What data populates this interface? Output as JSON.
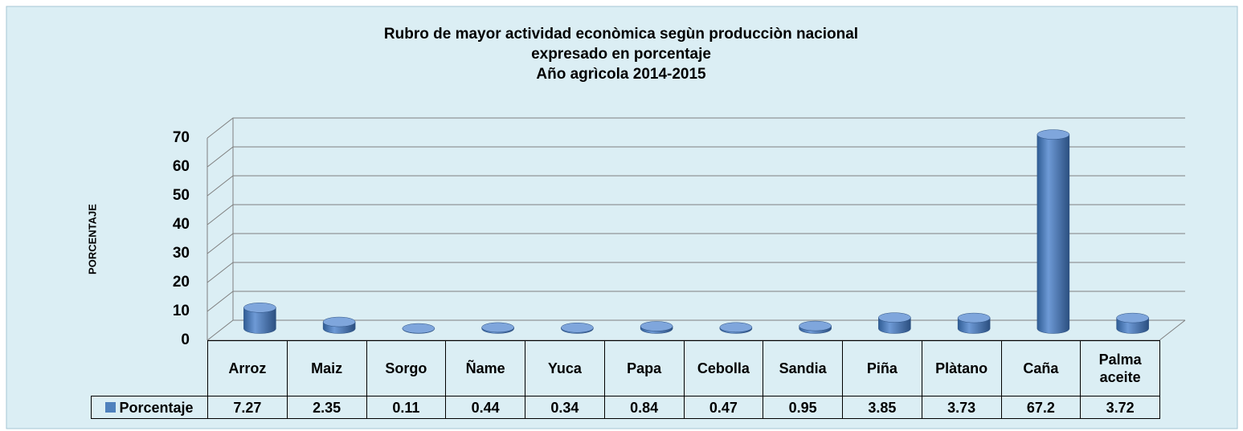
{
  "chart_data": {
    "type": "bar3d",
    "title": [
      "Rubro de mayor actividad econòmica segùn producciòn nacional",
      "expresado en porcentaje",
      "Año agrìcola 2014-2015"
    ],
    "y_label": "PORCENTAJE",
    "categories": [
      "Arroz",
      "Maiz",
      "Sorgo",
      "Ñame",
      "Yuca",
      "Papa",
      "Cebolla",
      "Sandia",
      "Piña",
      "Plàtano",
      "Caña",
      "Palma aceite"
    ],
    "series": [
      {
        "name": "Porcentaje",
        "color": "#4f81bd",
        "values": [
          7.27,
          2.35,
          0.11,
          0.44,
          0.34,
          0.84,
          0.47,
          0.95,
          3.85,
          3.73,
          67.2,
          3.72
        ]
      }
    ],
    "ylim": [
      0,
      70
    ],
    "yticks": [
      0,
      10,
      20,
      30,
      40,
      50,
      60,
      70
    ],
    "grid": true,
    "data_table": true
  }
}
